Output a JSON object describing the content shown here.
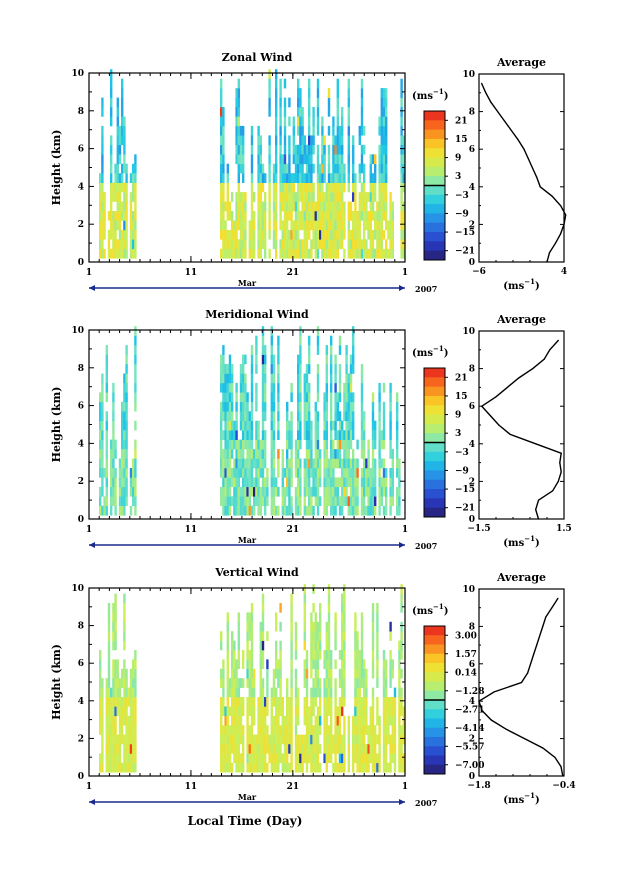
{
  "figure": {
    "x_label": "Local Time (Day)"
  },
  "chart_data": [
    {
      "type": "heatmap",
      "title": "Zonal Wind",
      "ylabel": "Height (km)",
      "ylim": [
        0,
        10
      ],
      "yticks": [
        "0",
        "2",
        "4",
        "6",
        "8",
        "10"
      ],
      "xlim": [
        1,
        32
      ],
      "xticks": [
        "1",
        "11",
        "21",
        "1"
      ],
      "month_label": "Mar",
      "year_label": "2007",
      "colorbar": {
        "unit": "(ms",
        "unit_exp": "−1",
        "unit_close": ")",
        "labels": [
          "21",
          "15",
          "9",
          "3",
          "−3",
          "−9",
          "−15",
          "−21"
        ],
        "range": [
          -24,
          24
        ]
      },
      "data_gaps_days": [
        [
          5.5,
          13.8
        ]
      ],
      "profile": {
        "title": "Average",
        "xlabel": "(ms",
        "xlabel_exp": "−1",
        "xlabel_close": ")",
        "xticks": [
          "−6",
          "4"
        ],
        "xlim": [
          -6,
          4
        ],
        "yticks": [
          "0",
          "2",
          "4",
          "6",
          "8",
          "10"
        ],
        "height_km": [
          0.0,
          0.5,
          1.0,
          1.5,
          2.0,
          2.5,
          3.0,
          3.5,
          4.0,
          4.5,
          5.0,
          5.5,
          6.0,
          6.5,
          7.0,
          7.5,
          8.0,
          8.5,
          9.0,
          9.5
        ],
        "speed": [
          2.0,
          2.3,
          3.0,
          3.6,
          4.0,
          4.2,
          3.6,
          2.6,
          1.2,
          0.8,
          0.3,
          -0.2,
          -0.7,
          -1.4,
          -2.2,
          -3.0,
          -3.8,
          -4.6,
          -5.2,
          -5.7
        ]
      }
    },
    {
      "type": "heatmap",
      "title": "Meridional Wind",
      "ylabel": "Height (km)",
      "ylim": [
        0,
        10
      ],
      "yticks": [
        "0",
        "2",
        "4",
        "6",
        "8",
        "10"
      ],
      "xlim": [
        1,
        32
      ],
      "xticks": [
        "1",
        "11",
        "21",
        "1"
      ],
      "month_label": "Mar",
      "year_label": "2007",
      "colorbar": {
        "unit": "(ms",
        "unit_exp": "−1",
        "unit_close": ")",
        "labels": [
          "21",
          "15",
          "9",
          "3",
          "−3",
          "−9",
          "−15",
          "−21"
        ],
        "range": [
          -24,
          24
        ]
      },
      "data_gaps_days": [
        [
          5.5,
          13.8
        ]
      ],
      "profile": {
        "title": "Average",
        "xlabel": "(ms",
        "xlabel_exp": "−1",
        "xlabel_close": ")",
        "xticks": [
          "−1.5",
          "1.5"
        ],
        "xlim": [
          -1.5,
          1.5
        ],
        "yticks": [
          "0",
          "2",
          "4",
          "6",
          "8",
          "10"
        ],
        "height_km": [
          0.0,
          0.5,
          1.0,
          1.5,
          2.0,
          2.5,
          3.0,
          3.5,
          4.0,
          4.5,
          5.0,
          5.5,
          6.0,
          6.5,
          7.0,
          7.5,
          8.0,
          8.5,
          9.0,
          9.5
        ],
        "speed": [
          0.6,
          0.5,
          0.6,
          1.1,
          1.3,
          1.4,
          1.35,
          1.4,
          0.5,
          -0.4,
          -0.8,
          -1.1,
          -1.4,
          -0.9,
          -0.5,
          -0.1,
          0.4,
          0.8,
          1.0,
          1.3
        ]
      }
    },
    {
      "type": "heatmap",
      "title": "Vertical Wind",
      "ylabel": "Height (km)",
      "ylim": [
        0,
        10
      ],
      "yticks": [
        "0",
        "2",
        "4",
        "6",
        "8",
        "10"
      ],
      "xlim": [
        1,
        32
      ],
      "xticks": [
        "1",
        "11",
        "21",
        "1"
      ],
      "month_label": "Mar",
      "year_label": "2007",
      "colorbar": {
        "unit": "(ms",
        "unit_exp": "−1",
        "unit_close": ")",
        "labels": [
          "3.00",
          "1.57",
          "0.14",
          "−1.28",
          "−2.71",
          "−4.14",
          "−5.57",
          "−7.00"
        ],
        "range": [
          -8,
          4
        ]
      },
      "data_gaps_days": [
        [
          5.5,
          13.8
        ]
      ],
      "profile": {
        "title": "Average",
        "xlabel": "(ms",
        "xlabel_exp": "−1",
        "xlabel_close": ")",
        "xticks": [
          "−1.8",
          "−0.4"
        ],
        "xlim": [
          -1.8,
          -0.4
        ],
        "yticks": [
          "0",
          "2",
          "4",
          "6",
          "8",
          "10"
        ],
        "height_km": [
          0.0,
          0.5,
          1.0,
          1.5,
          2.0,
          2.5,
          3.0,
          3.5,
          4.0,
          4.5,
          5.0,
          5.5,
          6.0,
          6.5,
          7.0,
          7.5,
          8.0,
          8.5,
          9.0,
          9.5
        ],
        "speed": [
          -0.42,
          -0.45,
          -0.55,
          -0.75,
          -1.05,
          -1.35,
          -1.6,
          -1.75,
          -1.8,
          -1.55,
          -1.1,
          -1.0,
          -0.95,
          -0.9,
          -0.85,
          -0.8,
          -0.75,
          -0.7,
          -0.6,
          -0.5
        ]
      }
    }
  ]
}
